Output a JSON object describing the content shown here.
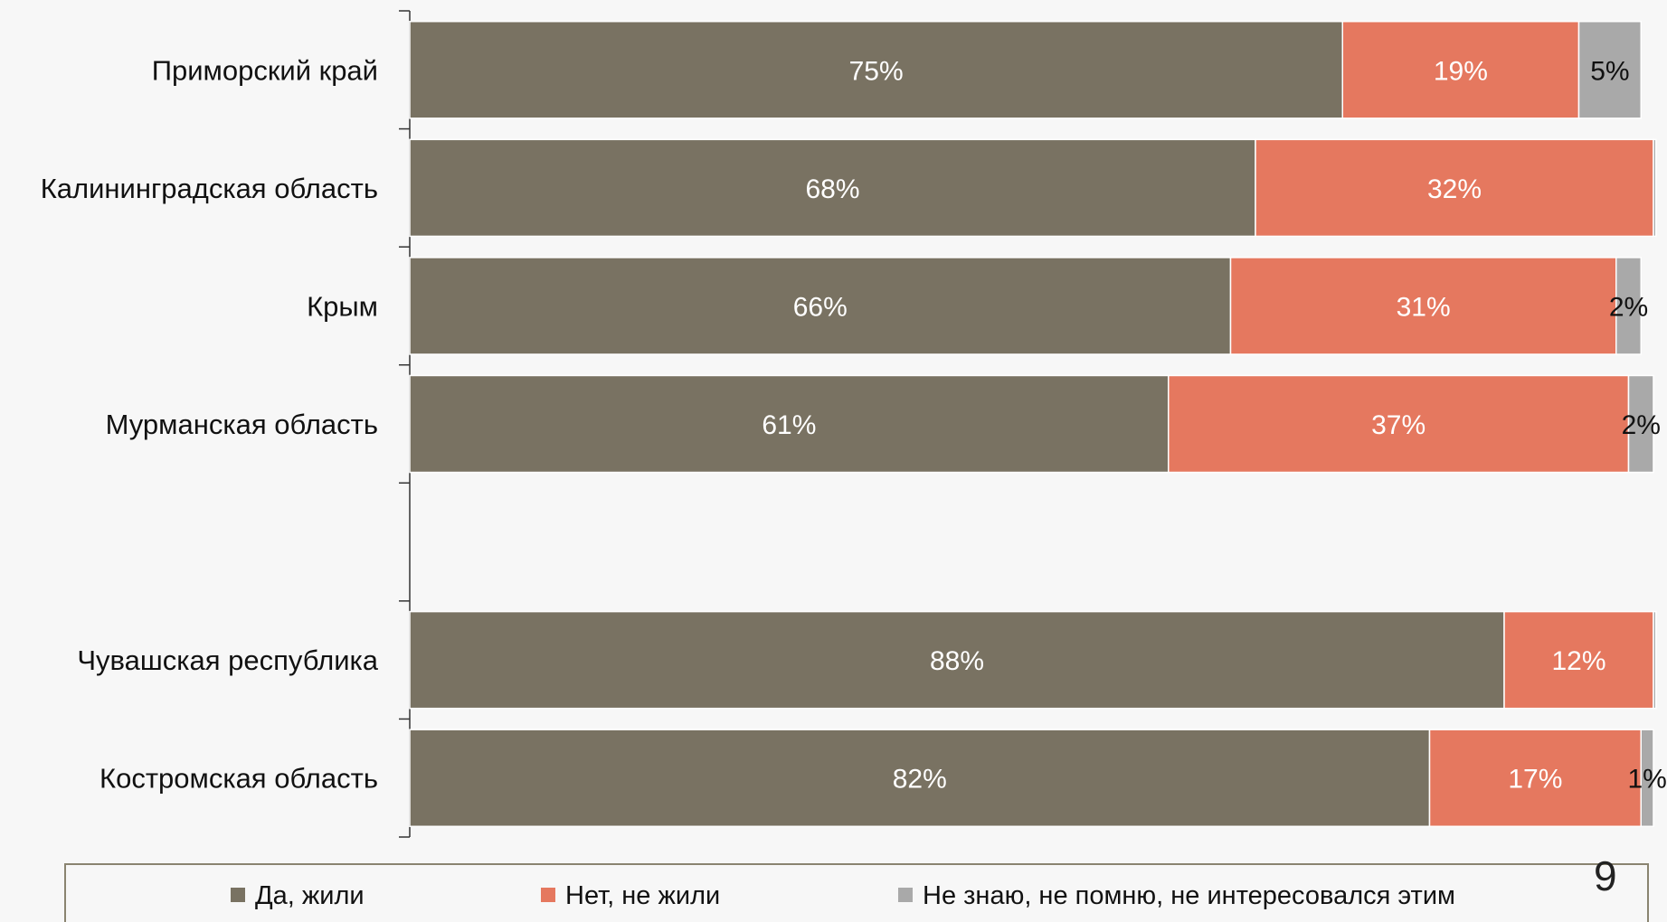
{
  "chart_data": {
    "type": "bar",
    "orientation": "horizontal",
    "stacked": true,
    "categories": [
      "Приморский край",
      "Калининградская область",
      "Крым",
      "Мурманская область",
      "",
      "Чувашская республика",
      "Костромская область"
    ],
    "series": [
      {
        "name": "Да, жили",
        "color": "#797262",
        "values": [
          75,
          68,
          66,
          61,
          null,
          88,
          82
        ],
        "labels": [
          "75%",
          "68%",
          "66%",
          "61%",
          "",
          "88%",
          "82%"
        ]
      },
      {
        "name": "Нет, не жили",
        "color": "#e5785f",
        "values": [
          19,
          32,
          31,
          37,
          null,
          12,
          17
        ],
        "labels": [
          "19%",
          "32%",
          "31%",
          "37%",
          "",
          "12%",
          "17%"
        ]
      },
      {
        "name": "Не знаю, не помню, не интересовался этим",
        "color": "#a9a9a9",
        "values": [
          5,
          0.2,
          2,
          2,
          null,
          0.2,
          1
        ],
        "labels": [
          "5%",
          "",
          "2%",
          "2%",
          "",
          "",
          "1%"
        ]
      }
    ],
    "xlim": [
      0,
      100
    ],
    "legend": "bottom",
    "grid": false
  },
  "page_number": "9"
}
